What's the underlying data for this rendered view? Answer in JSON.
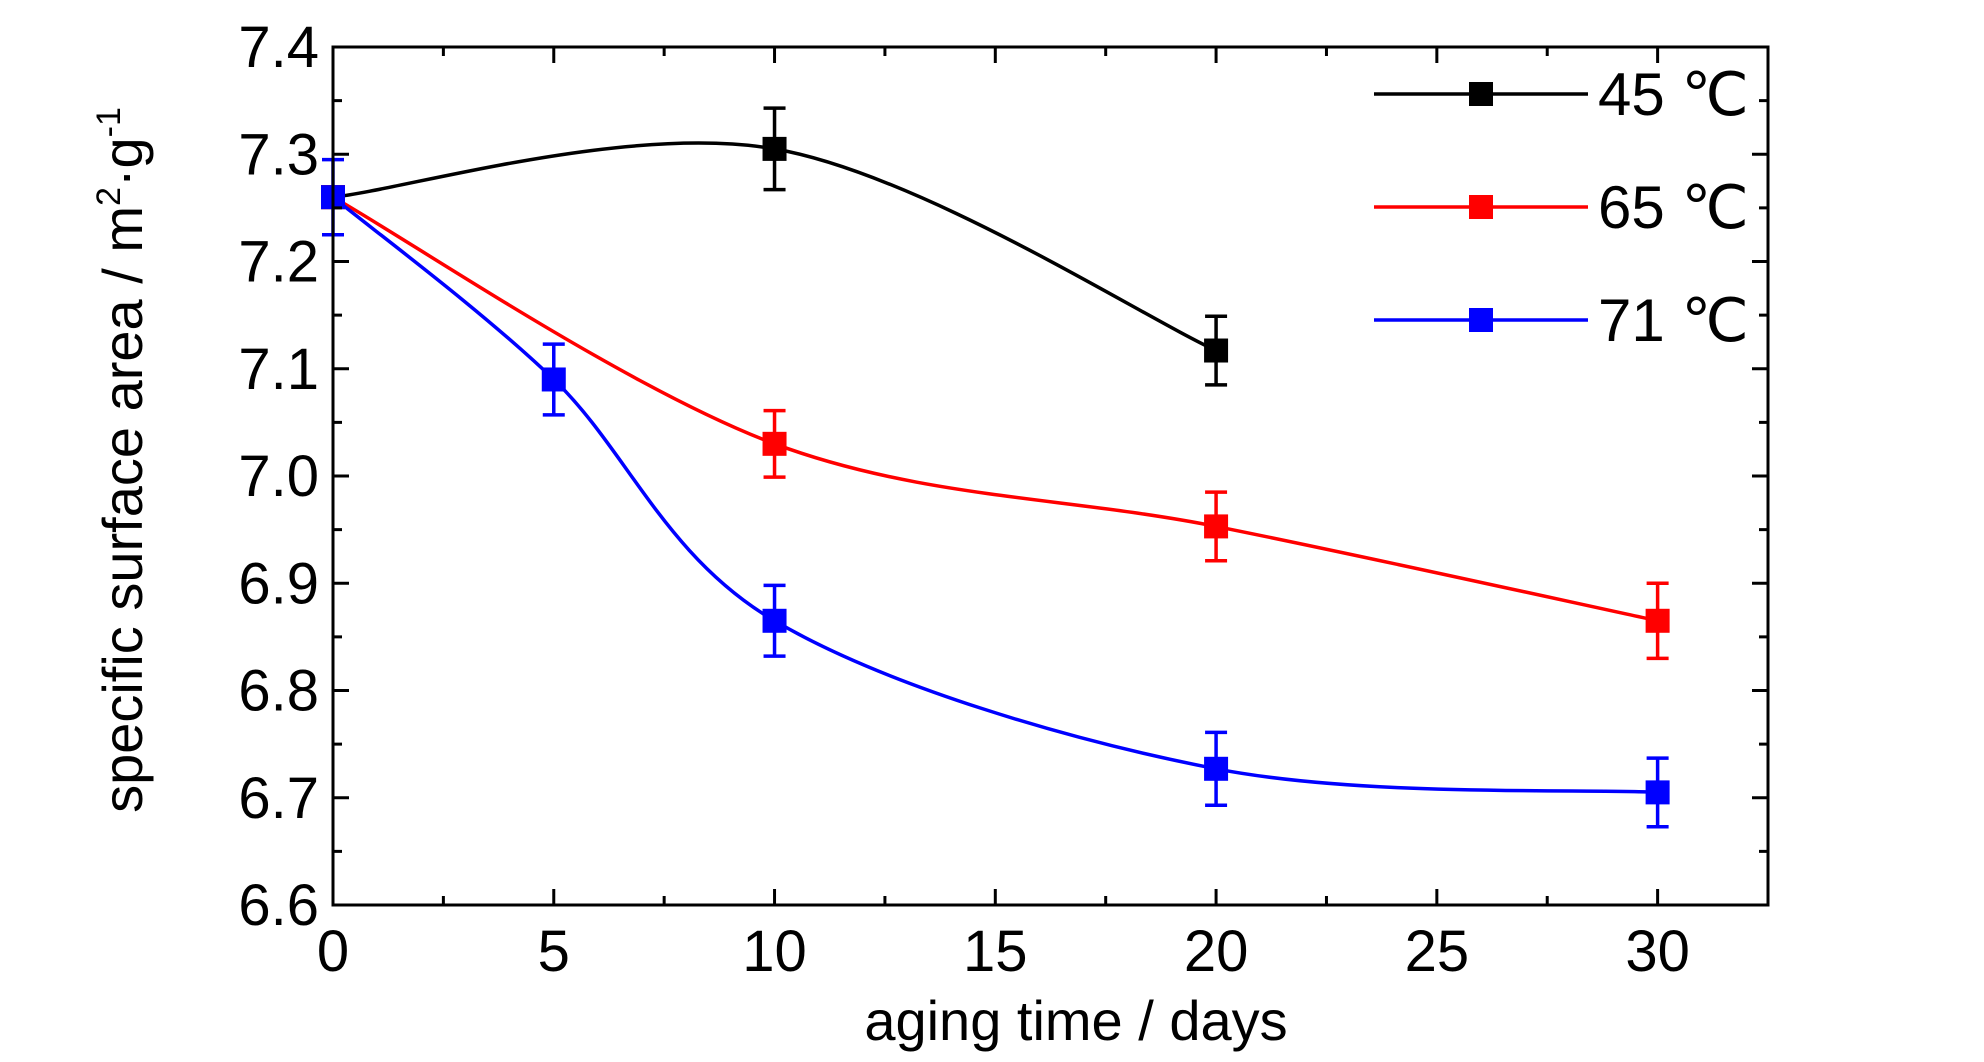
{
  "chart_data": {
    "type": "line",
    "xlabel": "aging time / days",
    "ylabel": {
      "main": "specific surface area / m",
      "sup1": "2",
      "mid": "·g",
      "sup2": "-1"
    },
    "xlim": [
      0,
      32.5
    ],
    "ylim": [
      6.6,
      7.4
    ],
    "xticks": [
      0,
      5,
      10,
      15,
      20,
      25,
      30
    ],
    "xtick_labels": [
      "0",
      "5",
      "10",
      "15",
      "20",
      "25",
      "30"
    ],
    "yticks": [
      6.6,
      6.7,
      6.8,
      6.9,
      7.0,
      7.1,
      7.2,
      7.3,
      7.4
    ],
    "ytick_labels": [
      "6.6",
      "6.7",
      "6.8",
      "6.9",
      "7.0",
      "7.1",
      "7.2",
      "7.3",
      "7.4"
    ],
    "grid": false,
    "legend_position": "top-right",
    "series": [
      {
        "name": "45 ℃",
        "color": "#000000",
        "x": [
          0,
          10,
          20
        ],
        "y": [
          7.26,
          7.305,
          7.117
        ],
        "error": [
          0,
          0.038,
          0.032
        ]
      },
      {
        "name": "65 ℃",
        "color": "#ff0000",
        "x": [
          0,
          10,
          20,
          30
        ],
        "y": [
          7.26,
          7.03,
          6.953,
          6.865
        ],
        "error": [
          0,
          0.031,
          0.032,
          0.035
        ]
      },
      {
        "name": "71 ℃",
        "color": "#0000ff",
        "x": [
          0,
          5,
          10,
          20,
          30
        ],
        "y": [
          7.26,
          7.09,
          6.865,
          6.727,
          6.705
        ],
        "error": [
          0.035,
          0.033,
          0.033,
          0.034,
          0.032
        ]
      }
    ]
  }
}
